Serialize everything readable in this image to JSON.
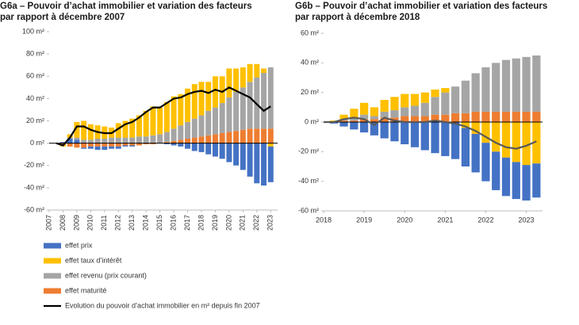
{
  "chart_data": [
    {
      "type": "stacked-bar-line",
      "title": "G6a – Pouvoir d’achat immobilier et variation des facteurs par rapport à décembre 2007",
      "x": [
        2007.5,
        2008.0,
        2008.5,
        2009.0,
        2009.5,
        2010.0,
        2010.5,
        2011.0,
        2011.5,
        2012.0,
        2012.5,
        2013.0,
        2013.5,
        2014.0,
        2014.5,
        2015.0,
        2015.5,
        2016.0,
        2016.5,
        2017.0,
        2017.5,
        2018.0,
        2018.5,
        2019.0,
        2019.5,
        2020.0,
        2020.5,
        2021.0,
        2021.5,
        2022.0,
        2022.5,
        2023.0
      ],
      "series": [
        {
          "name": "effet prix",
          "color": "#4472c4",
          "values": [
            0,
            1,
            4,
            3,
            -1,
            -2,
            -3,
            -3,
            -2,
            -2,
            -1,
            -1,
            0,
            0,
            0,
            0,
            -1,
            -2,
            -3,
            -5,
            -7,
            -8,
            -10,
            -12,
            -14,
            -17,
            -20,
            -24,
            -30,
            -36,
            -38,
            -32
          ]
        },
        {
          "name": "effet taux d’intérêt",
          "color": "#ffc000",
          "values": [
            0,
            -2,
            3,
            14,
            17,
            14,
            12,
            11,
            9,
            13,
            15,
            17,
            19,
            23,
            26,
            24,
            27,
            29,
            28,
            30,
            31,
            30,
            26,
            28,
            24,
            26,
            21,
            18,
            16,
            12,
            4,
            -3
          ]
        },
        {
          "name": "effet revenu (prix courant)",
          "color": "#a5a5a5",
          "values": [
            0,
            0,
            1,
            2,
            3,
            3,
            4,
            4,
            5,
            5,
            5,
            5,
            6,
            6,
            7,
            8,
            9,
            11,
            13,
            15,
            17,
            19,
            22,
            24,
            27,
            31,
            35,
            38,
            42,
            46,
            50,
            55
          ]
        },
        {
          "name": "effet maturité",
          "color": "#ed7d31",
          "values": [
            0,
            -1,
            -3,
            -4,
            -4,
            -3,
            -3,
            -3,
            -3,
            -3,
            -2,
            -2,
            -2,
            -1,
            -1,
            0,
            1,
            2,
            3,
            4,
            5,
            6,
            7,
            8,
            9,
            10,
            11,
            12,
            13,
            13,
            13,
            13
          ]
        }
      ],
      "line": {
        "name": "Evolution du pouvoir d’achat immobilier en m² depuis fin 2007",
        "color": "#000000",
        "values": [
          0,
          -2,
          5,
          15,
          15,
          12,
          10,
          9,
          9,
          13,
          17,
          19,
          23,
          28,
          32,
          32,
          36,
          40,
          41,
          44,
          46,
          47,
          45,
          48,
          46,
          50,
          47,
          44,
          41,
          35,
          29,
          33
        ]
      },
      "xlim": [
        2007,
        2023.5
      ],
      "xticks": [
        2007,
        2008,
        2009,
        2010,
        2011,
        2012,
        2013,
        2014,
        2015,
        2016,
        2017,
        2018,
        2019,
        2020,
        2021,
        2022,
        2023
      ],
      "ylim": [
        -60,
        100
      ],
      "yticks": [
        {
          "value": 100,
          "label": "100 m²"
        },
        {
          "value": 80,
          "label": "80 m²"
        },
        {
          "value": 60,
          "label": "60 m²"
        },
        {
          "value": 40,
          "label": "40 m²"
        },
        {
          "value": 20,
          "label": "20 m²"
        },
        {
          "value": 0,
          "label": "0 m²"
        },
        {
          "value": -20,
          "label": "-20 m²"
        },
        {
          "value": -40,
          "label": "-40 m²"
        },
        {
          "value": -60,
          "label": "-60 m²"
        }
      ]
    },
    {
      "type": "stacked-bar-line",
      "title": "G6b – Pouvoir d’achat immobilier et variation des facteurs par rapport à décembre 2018",
      "x": [
        2018.0,
        2018.25,
        2018.5,
        2018.75,
        2019.0,
        2019.25,
        2019.5,
        2019.75,
        2020.0,
        2020.25,
        2020.5,
        2020.75,
        2021.0,
        2021.25,
        2021.5,
        2021.75,
        2022.0,
        2022.25,
        2022.5,
        2022.75,
        2023.0,
        2023.25
      ],
      "series": [
        {
          "name": "effet prix",
          "color": "#4472c4",
          "values": [
            0,
            -1,
            -3,
            -5,
            -7,
            -9,
            -11,
            -13,
            -15,
            -17,
            -19,
            -21,
            -23,
            -25,
            -26,
            -26,
            -26,
            -26,
            -26,
            -25,
            -24,
            -23
          ]
        },
        {
          "name": "effet taux d’intérêt",
          "color": "#ffc000",
          "values": [
            0,
            1,
            3,
            6,
            8,
            6,
            8,
            9,
            9,
            8,
            7,
            5,
            3,
            0,
            -4,
            -8,
            -14,
            -20,
            -24,
            -27,
            -29,
            -28
          ]
        },
        {
          "name": "effet revenu (prix courant)",
          "color": "#a5a5a5",
          "values": [
            0,
            0,
            1,
            2,
            3,
            2,
            4,
            5,
            6,
            7,
            9,
            12,
            15,
            18,
            22,
            26,
            30,
            33,
            35,
            36,
            37,
            38
          ]
        },
        {
          "name": "effet maturité",
          "color": "#ed7d31",
          "values": [
            0,
            0,
            1,
            1,
            2,
            2,
            3,
            3,
            4,
            4,
            4,
            5,
            5,
            6,
            6,
            7,
            7,
            7,
            7,
            7,
            7,
            7
          ]
        }
      ],
      "line": {
        "color": "#595959",
        "values": [
          0,
          0,
          2,
          3,
          2,
          -2,
          3,
          1,
          0,
          0,
          0,
          1,
          0,
          -1,
          -3,
          -6,
          -10,
          -14,
          -17,
          -18,
          -16,
          -13
        ]
      },
      "xlim": [
        2018,
        2023.4
      ],
      "xticks": [
        2018,
        2019,
        2020,
        2021,
        2022,
        2023
      ],
      "ylim": [
        -60,
        60
      ],
      "yticks": [
        {
          "value": 60,
          "label": "60 m²"
        },
        {
          "value": 40,
          "label": "40 m²"
        },
        {
          "value": 20,
          "label": "20 m²"
        },
        {
          "value": 0,
          "label": "0 m²"
        },
        {
          "value": -20,
          "label": "-20 m²"
        },
        {
          "value": -40,
          "label": "-40 m²"
        },
        {
          "value": -60,
          "label": "-60 m²"
        }
      ]
    }
  ]
}
